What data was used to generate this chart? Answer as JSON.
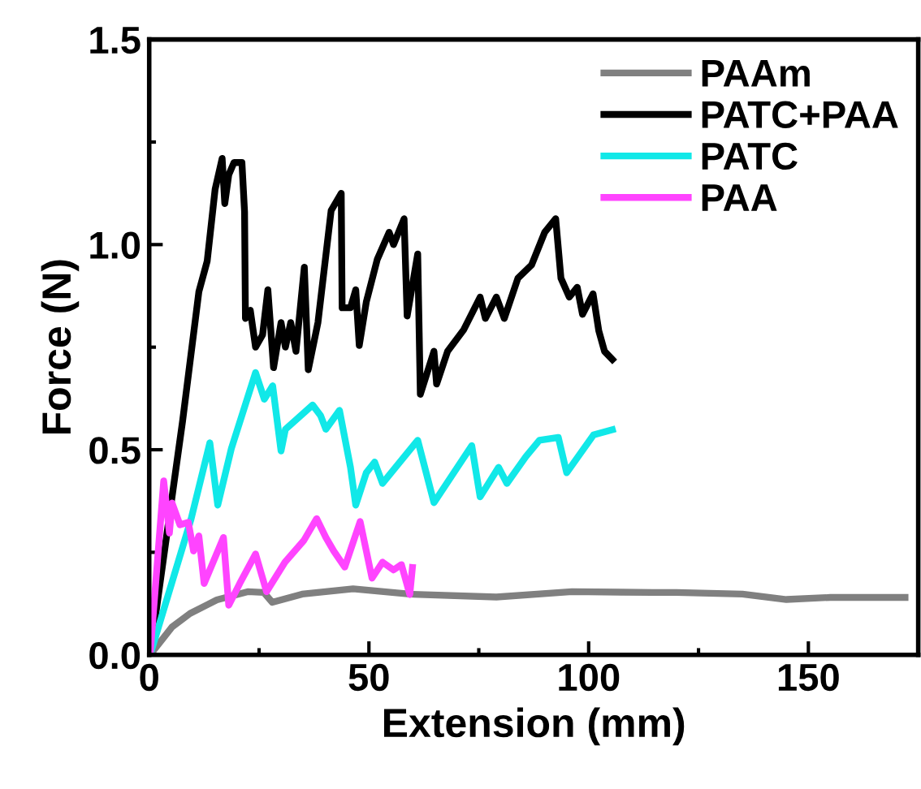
{
  "chart_data": {
    "type": "line",
    "xlabel": "Extension (mm)",
    "ylabel": "Force (N)",
    "xlim": [
      0,
      175
    ],
    "ylim": [
      0,
      1.5
    ],
    "xticks": [
      0,
      50,
      100,
      150
    ],
    "yticks": [
      {
        "value": 0,
        "label": "0.0"
      },
      {
        "value": 0.5,
        "label": "0.5"
      },
      {
        "value": 1.0,
        "label": "1.0"
      },
      {
        "value": 1.5,
        "label": "1.5"
      }
    ],
    "grid": false,
    "legend": "top right",
    "marker": "none",
    "line_style": "solid",
    "series": [
      {
        "name": "PAAm",
        "color": "#808080",
        "x": [
          0.2,
          5.2,
          9.3,
          15.4,
          22.4,
          26.1,
          28,
          34.8,
          46.4,
          59.3,
          79,
          96.2,
          114.6,
          120,
          135,
          145,
          155,
          172
        ],
        "values": [
          0,
          0.068,
          0.101,
          0.134,
          0.154,
          0.152,
          0.128,
          0.148,
          0.161,
          0.148,
          0.141,
          0.154,
          0.152,
          0.152,
          0.148,
          0.135,
          0.14,
          0.14
        ]
      },
      {
        "name": "PATC+PAA",
        "color": "#000000",
        "x": [
          0.2,
          7.6,
          11.3,
          13.2,
          15,
          16.6,
          17.2,
          18.1,
          19.3,
          21.1,
          21.7,
          21.9,
          23,
          24.2,
          25.8,
          27,
          28.3,
          30,
          31,
          32.2,
          33.4,
          35.3,
          36.2,
          38.4,
          41.4,
          43.7,
          43.9,
          45.8,
          47,
          47.8,
          49.4,
          51.9,
          54.6,
          55.6,
          58,
          58.7,
          61.1,
          61.7,
          64.8,
          65.4,
          67.9,
          71.6,
          75.3,
          76.5,
          79,
          80.8,
          83.9,
          87,
          90,
          92.5,
          93.7,
          95.6,
          97.4,
          98.6,
          101,
          102.3,
          103.6,
          105.4
        ],
        "values": [
          0,
          0.57,
          0.885,
          0.96,
          1.135,
          1.21,
          1.1,
          1.17,
          1.2,
          1.2,
          1.08,
          0.82,
          0.84,
          0.75,
          0.78,
          0.89,
          0.7,
          0.81,
          0.75,
          0.81,
          0.74,
          0.945,
          0.695,
          0.81,
          1.083,
          1.125,
          0.846,
          0.846,
          0.89,
          0.754,
          0.86,
          0.964,
          1.03,
          1.0,
          1.063,
          0.826,
          0.977,
          0.635,
          0.74,
          0.66,
          0.74,
          0.793,
          0.872,
          0.82,
          0.872,
          0.82,
          0.918,
          0.95,
          1.03,
          1.063,
          0.918,
          0.872,
          0.896,
          0.83,
          0.88,
          0.79,
          0.74,
          0.72
        ]
      },
      {
        "name": "PATC",
        "color": "#11e8e8",
        "x": [
          0.2,
          9.5,
          13.8,
          15.6,
          18.7,
          24.2,
          26.2,
          28.1,
          30,
          31,
          37.2,
          39,
          40.2,
          43.3,
          45.8,
          47,
          49.4,
          51.3,
          53.1,
          61.1,
          64.8,
          73.4,
          75.3,
          79.5,
          81.4,
          85.7,
          88.8,
          93.1,
          95,
          101.1,
          105.4
        ],
        "values": [
          0,
          0.33,
          0.517,
          0.365,
          0.503,
          0.688,
          0.623,
          0.656,
          0.497,
          0.55,
          0.609,
          0.583,
          0.55,
          0.596,
          0.457,
          0.365,
          0.444,
          0.47,
          0.418,
          0.523,
          0.371,
          0.51,
          0.385,
          0.457,
          0.418,
          0.483,
          0.523,
          0.53,
          0.444,
          0.536,
          0.549
        ]
      },
      {
        "name": "PAA",
        "color": "#ff44ff",
        "x": [
          0.2,
          3.3,
          4.6,
          5.2,
          7,
          8.9,
          10.1,
          11.3,
          12.5,
          16.9,
          18.1,
          20.6,
          24.2,
          26.7,
          30.9,
          35.2,
          38.1,
          40.2,
          42,
          44.5,
          48,
          50.7,
          53.1,
          55.6,
          57.4,
          59.3,
          59.9
        ],
        "values": [
          0,
          0.424,
          0.297,
          0.37,
          0.317,
          0.323,
          0.253,
          0.29,
          0.174,
          0.286,
          0.121,
          0.174,
          0.246,
          0.154,
          0.226,
          0.279,
          0.332,
          0.286,
          0.253,
          0.214,
          0.325,
          0.187,
          0.226,
          0.207,
          0.22,
          0.147,
          0.213
        ]
      }
    ]
  }
}
